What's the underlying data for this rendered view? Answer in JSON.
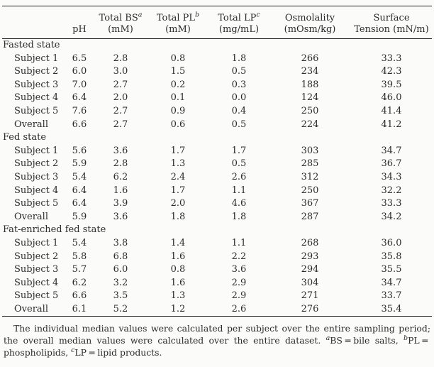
{
  "table": {
    "header": {
      "label_col": "",
      "col_ph": "pH",
      "cols": [
        {
          "line1": "Total BS",
          "sup": "a",
          "line2": "(mM)"
        },
        {
          "line1": "Total PL",
          "sup": "b",
          "line2": "(mM)"
        },
        {
          "line1": "Total LP",
          "sup": "c",
          "line2": "(mg/mL)"
        },
        {
          "line1": "Osmolality",
          "sup": "",
          "line2": "(mOsm/kg)"
        },
        {
          "line1": "Surface",
          "sup": "",
          "line2": "Tension (mN/m)"
        }
      ]
    },
    "groups": [
      {
        "label": "Fasted state",
        "rows": [
          {
            "label": "Subject 1",
            "values": [
              "6.5",
              "2.8",
              "0.8",
              "1.8",
              "266",
              "33.3"
            ]
          },
          {
            "label": "Subject 2",
            "values": [
              "6.0",
              "3.0",
              "1.5",
              "0.5",
              "234",
              "42.3"
            ]
          },
          {
            "label": "Subject 3",
            "values": [
              "7.0",
              "2.7",
              "0.2",
              "0.3",
              "188",
              "39.5"
            ]
          },
          {
            "label": "Subject 4",
            "values": [
              "6.4",
              "2.0",
              "0.1",
              "0.0",
              "124",
              "46.0"
            ]
          },
          {
            "label": "Subject 5",
            "values": [
              "7.6",
              "2.7",
              "0.9",
              "0.4",
              "250",
              "41.4"
            ]
          },
          {
            "label": "Overall",
            "values": [
              "6.6",
              "2.7",
              "0.6",
              "0.5",
              "224",
              "41.2"
            ]
          }
        ]
      },
      {
        "label": "Fed state",
        "rows": [
          {
            "label": "Subject 1",
            "values": [
              "5.6",
              "3.6",
              "1.7",
              "1.7",
              "303",
              "34.7"
            ]
          },
          {
            "label": "Subject 2",
            "values": [
              "5.9",
              "2.8",
              "1.3",
              "0.5",
              "285",
              "36.7"
            ]
          },
          {
            "label": "Subject 3",
            "values": [
              "5.4",
              "6.2",
              "2.4",
              "2.6",
              "312",
              "34.3"
            ]
          },
          {
            "label": "Subject 4",
            "values": [
              "6.4",
              "1.6",
              "1.7",
              "1.1",
              "250",
              "32.2"
            ]
          },
          {
            "label": "Subject 5",
            "values": [
              "6.4",
              "3.9",
              "2.0",
              "4.6",
              "367",
              "33.3"
            ]
          },
          {
            "label": "Overall",
            "values": [
              "5.9",
              "3.6",
              "1.8",
              "1.8",
              "287",
              "34.2"
            ]
          }
        ]
      },
      {
        "label": "Fat-enriched fed state",
        "rows": [
          {
            "label": "Subject 1",
            "values": [
              "5.4",
              "3.8",
              "1.4",
              "1.1",
              "268",
              "36.0"
            ]
          },
          {
            "label": "Subject 2",
            "values": [
              "5.8",
              "6.8",
              "1.6",
              "2.2",
              "293",
              "35.8"
            ]
          },
          {
            "label": "Subject 3",
            "values": [
              "5.7",
              "6.0",
              "0.8",
              "3.6",
              "294",
              "35.5"
            ]
          },
          {
            "label": "Subject 4",
            "values": [
              "6.2",
              "3.2",
              "1.6",
              "2.9",
              "304",
              "34.7"
            ]
          },
          {
            "label": "Subject 5",
            "values": [
              "6.6",
              "3.5",
              "1.3",
              "2.9",
              "271",
              "33.7"
            ]
          },
          {
            "label": "Overall",
            "values": [
              "6.1",
              "5.2",
              "1.2",
              "2.6",
              "276",
              "35.4"
            ]
          }
        ]
      }
    ]
  },
  "footnote": {
    "main": "The individual median values were calculated per subject over the entire sampling period; the overall median values were calculated over the entire dataset. ",
    "sup_a": "a",
    "def_a": "BS = bile salts, ",
    "sup_b": "b",
    "def_b": "PL = phospholipids, ",
    "sup_c": "c",
    "def_c": "LP = lipid products."
  }
}
